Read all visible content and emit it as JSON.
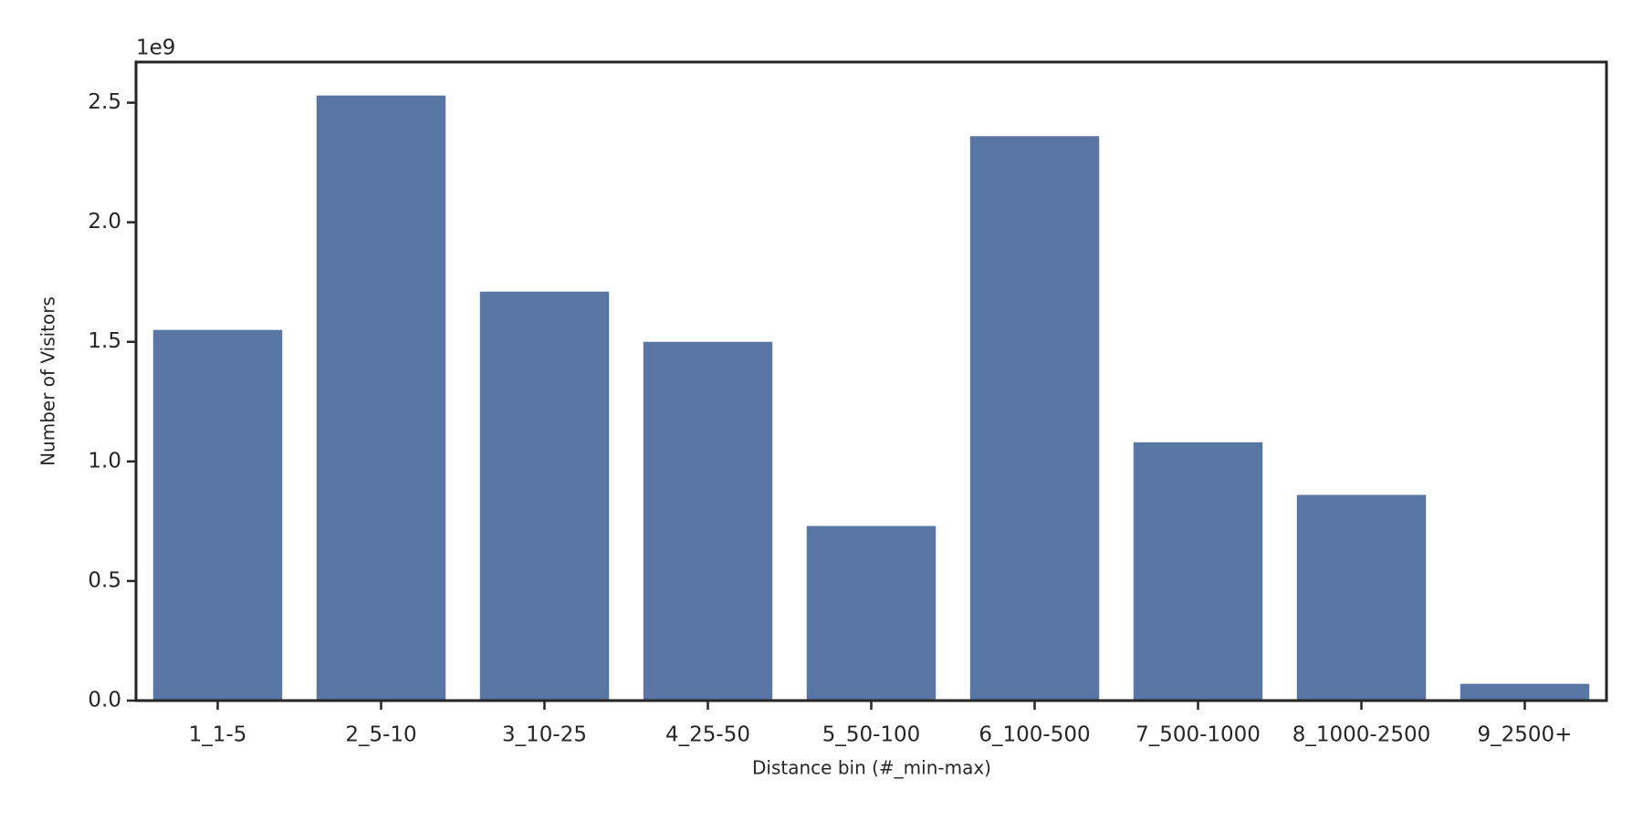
{
  "chart_data": {
    "type": "bar",
    "x_label": "Distance bin (#_min-max)",
    "y_label": "Number of Visitors",
    "y_offset_label": "1e9",
    "categories": [
      "1_1-5",
      "2_5-10",
      "3_10-25",
      "4_25-50",
      "5_50-100",
      "6_100-500",
      "7_500-1000",
      "8_1000-2500",
      "9_2500+"
    ],
    "values": [
      1.55,
      2.53,
      1.71,
      1.5,
      0.73,
      2.36,
      1.08,
      0.86,
      0.07
    ],
    "color": "#5975a4",
    "ylim": [
      0,
      2.67
    ],
    "yticks": [
      {
        "value": 0,
        "label": "0.0"
      },
      0.5,
      {
        "value": 1,
        "label": "1.0"
      },
      1.5,
      {
        "value": 2,
        "label": "2.0"
      },
      2.5
    ],
    "grid": false
  }
}
